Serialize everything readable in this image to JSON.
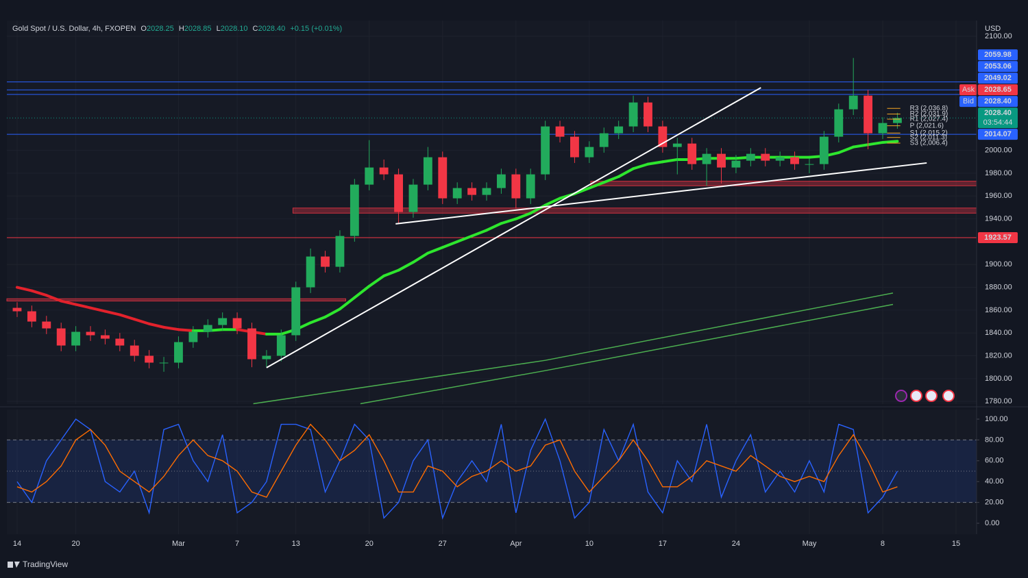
{
  "header": {
    "symbol": "Gold Spot / U.S. Dollar, 4h, FXOPEN",
    "o_label": "O",
    "o_value": "2028.25",
    "h_label": "H",
    "h_value": "2028.85",
    "l_label": "L",
    "l_value": "2028.10",
    "c_label": "C",
    "c_value": "2028.40",
    "change": "+0.15 (+0.01%)",
    "currency": "USD"
  },
  "footer": {
    "brand": "TradingView"
  },
  "chart_data": [
    {
      "type": "candlestick",
      "up_color": "#22ab5c",
      "down_color": "#f23645",
      "xlim": [
        -0.7,
        65.4
      ],
      "ylim": [
        1777.7,
        2113.8
      ],
      "yticks": [
        {
          "value": 2100,
          "label": "2100.00"
        },
        {
          "value": 2000,
          "label": "2000.00"
        },
        {
          "value": 1980,
          "label": "1980.00"
        },
        {
          "value": 1960,
          "label": "1960.00"
        },
        {
          "value": 1940,
          "label": "1940.00"
        },
        {
          "value": 1900,
          "label": "1900.00"
        },
        {
          "value": 1880,
          "label": "1880.00"
        },
        {
          "value": 1860,
          "label": "1860.00"
        },
        {
          "value": 1840,
          "label": "1840.00"
        },
        {
          "value": 1820,
          "label": "1820.00"
        },
        {
          "value": 1800,
          "label": "1800.00"
        },
        {
          "value": 1780,
          "label": "1780.00"
        }
      ],
      "open": [
        1862,
        1859,
        1850,
        1844,
        1829,
        1841,
        1838,
        1835,
        1829,
        1820,
        1814,
        1814,
        1832,
        1841,
        1847,
        1853,
        1844,
        1817,
        1820,
        1838,
        1880,
        1907,
        1898,
        1925,
        1970,
        1985,
        1979,
        1946,
        1970,
        1994,
        1958,
        1967,
        1961,
        1967,
        1979,
        1958,
        1979,
        2021,
        2012,
        1994,
        2003,
        2015,
        2021,
        2042,
        2021,
        2003,
        2006,
        1988,
        1997,
        1985,
        1991,
        1997,
        1991,
        1994,
        1988,
        1988,
        2012,
        2036,
        2048,
        2015,
        2024
      ],
      "high": [
        1867,
        1864,
        1855,
        1849,
        1846,
        1846,
        1843,
        1840,
        1834,
        1825,
        1819,
        1837,
        1846,
        1852,
        1858,
        1858,
        1849,
        1825,
        1843,
        1885,
        1914,
        1912,
        1930,
        1975,
        2009,
        1992,
        1984,
        1975,
        2003,
        1999,
        1972,
        1972,
        1972,
        1984,
        1984,
        1984,
        2026,
        2026,
        2017,
        2008,
        2020,
        2026,
        2048,
        2047,
        2026,
        2011,
        2011,
        2002,
        2002,
        1996,
        2002,
        2002,
        1999,
        1999,
        1993,
        2017,
        2041,
        2081,
        2053,
        2029,
        2033
      ],
      "low": [
        1854,
        1845,
        1839,
        1824,
        1824,
        1833,
        1830,
        1824,
        1815,
        1809,
        1806,
        1809,
        1827,
        1836,
        1842,
        1839,
        1810,
        1810,
        1815,
        1833,
        1875,
        1893,
        1893,
        1920,
        1965,
        1974,
        1936,
        1941,
        1965,
        1953,
        1953,
        1956,
        1956,
        1962,
        1949,
        1953,
        1974,
        2007,
        1989,
        1989,
        1998,
        2010,
        2016,
        2016,
        1998,
        1979,
        1983,
        1969,
        1971,
        1980,
        1986,
        1986,
        1986,
        1983,
        1980,
        1983,
        2007,
        2031,
        2001,
        2010,
        2019
      ],
      "close": [
        1859,
        1850,
        1844,
        1829,
        1841,
        1838,
        1835,
        1829,
        1820,
        1814,
        1814,
        1832,
        1841,
        1847,
        1853,
        1844,
        1817,
        1820,
        1838,
        1880,
        1907,
        1898,
        1925,
        1970,
        1985,
        1979,
        1946,
        1970,
        1994,
        1958,
        1967,
        1961,
        1967,
        1979,
        1958,
        1979,
        2021,
        2012,
        1994,
        2003,
        2015,
        2021,
        2042,
        2021,
        2003,
        2006,
        1988,
        1997,
        1985,
        1991,
        1997,
        1991,
        1994,
        1988,
        1988,
        2012,
        2036,
        2048,
        2015,
        2024,
        2028.4
      ],
      "ema": {
        "rising_color": "#2ee62e",
        "falling_color": "#e3222c",
        "values": [
          1880,
          1877,
          1873,
          1868,
          1865,
          1862,
          1859,
          1856,
          1852,
          1848,
          1845,
          1843,
          1842,
          1842,
          1843,
          1843,
          1841,
          1839,
          1839,
          1843,
          1849,
          1854,
          1861,
          1871,
          1881,
          1890,
          1895,
          1902,
          1910,
          1915,
          1920,
          1925,
          1930,
          1936,
          1940,
          1945,
          1952,
          1958,
          1962,
          1967,
          1972,
          1977,
          1984,
          1988,
          1990,
          1992,
          1992,
          1993,
          1993,
          1993,
          1994,
          1994,
          1994,
          1994,
          1994,
          1995,
          1998,
          2003,
          2005,
          2007,
          2008
        ]
      },
      "long_mas": [
        {
          "color": "#4caf50",
          "x": [
            16.1,
            36,
            59.7
          ],
          "values": [
            1778,
            1816,
            1875
          ]
        },
        {
          "color": "#4caf50",
          "x": [
            23.4,
            36,
            59.7
          ],
          "values": [
            1778,
            1807,
            1865
          ]
        }
      ],
      "trendlines": [
        {
          "color": "#ffffff",
          "x": [
            17.0,
            50.7
          ],
          "values": [
            1809.6,
            2055
          ]
        },
        {
          "color": "#ffffff",
          "x": [
            25.8,
            62.0
          ],
          "values": [
            1935.6,
            1989
          ]
        }
      ],
      "zones": [
        {
          "color": "#f23645",
          "x": [
            18.8,
            65.4
          ],
          "from": 1945,
          "to": 1949.5
        },
        {
          "color": "#f23645",
          "x": [
            39.1,
            65.4
          ],
          "from": 1969,
          "to": 1973
        },
        {
          "color": "#f23645",
          "x": [
            -0.7,
            22.4
          ],
          "from": 1868,
          "to": 1870
        }
      ],
      "pivots": {
        "color": "#f5a623",
        "x": [
          59.3,
          60.2
        ],
        "levels": [
          {
            "label": "R3 (2,036.8)",
            "value": 2036.8
          },
          {
            "label": "R2 (2,031.9)",
            "value": 2031.9
          },
          {
            "label": "R1 (2,027.4)",
            "value": 2027.4
          },
          {
            "label": "P (2,021.6)",
            "value": 2021.6
          },
          {
            "label": "S1 (2,015.2)",
            "value": 2015.2
          },
          {
            "label": "S2 (2,011.3)",
            "value": 2011.3
          },
          {
            "label": "S3 (2,006.4)",
            "value": 2006.4
          }
        ]
      },
      "price_tags": [
        {
          "value": 2059.98,
          "label": "2059.98",
          "color": "#2962ff",
          "line": "solid"
        },
        {
          "value": 2053.06,
          "label": "2053.06",
          "color": "#2962ff",
          "line": "solid"
        },
        {
          "value": 2049.02,
          "label": "2049.02",
          "color": "#2962ff",
          "line": "solid"
        },
        {
          "value": 2028.65,
          "label": "2028.65",
          "color": "#f23645",
          "tag": "Ask"
        },
        {
          "value": 2028.4,
          "label": "2028.40",
          "color": "#2962ff",
          "tag": "Bid"
        },
        {
          "value": 2028.4,
          "label": "2028.40",
          "color": "#089981",
          "countdown": "03:54:44",
          "line": "dotted"
        },
        {
          "value": 2014.07,
          "label": "2014.07",
          "color": "#2962ff",
          "line": "solid"
        },
        {
          "value": 1923.57,
          "label": "1923.57",
          "color": "#f23645",
          "line": "solid"
        }
      ]
    },
    {
      "type": "stochastic",
      "xlim": [
        -0.7,
        65.4
      ],
      "ylim": [
        -10.5,
        109.2
      ],
      "xticks": [
        {
          "value": 0,
          "label": "14"
        },
        {
          "value": 4,
          "label": "20"
        },
        {
          "value": 11,
          "label": "Mar"
        },
        {
          "value": 15,
          "label": "7"
        },
        {
          "value": 19,
          "label": "13"
        },
        {
          "value": 24,
          "label": "20"
        },
        {
          "value": 29,
          "label": "27"
        },
        {
          "value": 34,
          "label": "Apr"
        },
        {
          "value": 39,
          "label": "10"
        },
        {
          "value": 44,
          "label": "17"
        },
        {
          "value": 49,
          "label": "24"
        },
        {
          "value": 54,
          "label": "May"
        },
        {
          "value": 59,
          "label": "8"
        },
        {
          "value": 64,
          "label": "15"
        }
      ],
      "yticks": [
        {
          "value": 100,
          "label": "100.00"
        },
        {
          "value": 80,
          "label": "80.00"
        },
        {
          "value": 60,
          "label": "60.00"
        },
        {
          "value": 40,
          "label": "40.00"
        },
        {
          "value": 20,
          "label": "20.00"
        },
        {
          "value": 0,
          "label": "0.00"
        }
      ],
      "upper_band": 80,
      "middle": 50,
      "lower_band": 20,
      "band_color": "#2962ff",
      "series": [
        {
          "color": "#2962ff",
          "values": [
            40,
            20,
            60,
            80,
            100,
            90,
            40,
            30,
            50,
            10,
            90,
            95,
            60,
            40,
            85,
            10,
            20,
            40,
            95,
            95,
            90,
            30,
            60,
            95,
            80,
            5,
            20,
            60,
            80,
            5,
            40,
            60,
            40,
            95,
            10,
            70,
            100,
            60,
            5,
            20,
            90,
            60,
            95,
            30,
            10,
            60,
            40,
            95,
            25,
            60,
            85,
            30,
            50,
            30,
            60,
            30,
            95,
            90,
            10,
            25,
            50
          ]
        },
        {
          "color": "#ff6d00",
          "values": [
            35,
            30,
            40,
            55,
            80,
            90,
            75,
            50,
            40,
            30,
            45,
            65,
            80,
            65,
            60,
            50,
            30,
            25,
            50,
            75,
            95,
            80,
            60,
            70,
            85,
            60,
            30,
            30,
            55,
            50,
            35,
            45,
            50,
            60,
            50,
            55,
            75,
            80,
            50,
            30,
            45,
            60,
            80,
            60,
            35,
            35,
            45,
            60,
            55,
            50,
            65,
            55,
            45,
            40,
            45,
            40,
            65,
            85,
            60,
            30,
            35
          ]
        }
      ]
    }
  ]
}
